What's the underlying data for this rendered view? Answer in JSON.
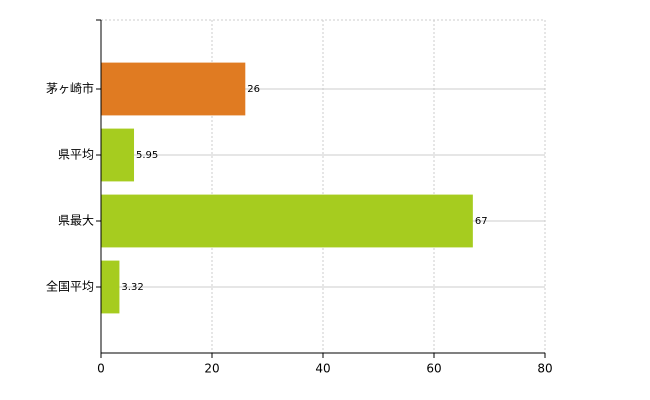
{
  "chart_data": {
    "type": "bar",
    "orientation": "horizontal",
    "categories": [
      "茅ヶ崎市",
      "県平均",
      "県最大",
      "全国平均"
    ],
    "values": [
      26,
      5.95,
      67,
      3.32
    ],
    "colors": [
      "#e07b22",
      "#a6cc1f",
      "#a6cc1f",
      "#a6cc1f"
    ],
    "xlim": [
      0,
      80
    ],
    "xticks": [
      0,
      20,
      40,
      60,
      80
    ],
    "grid": true
  }
}
